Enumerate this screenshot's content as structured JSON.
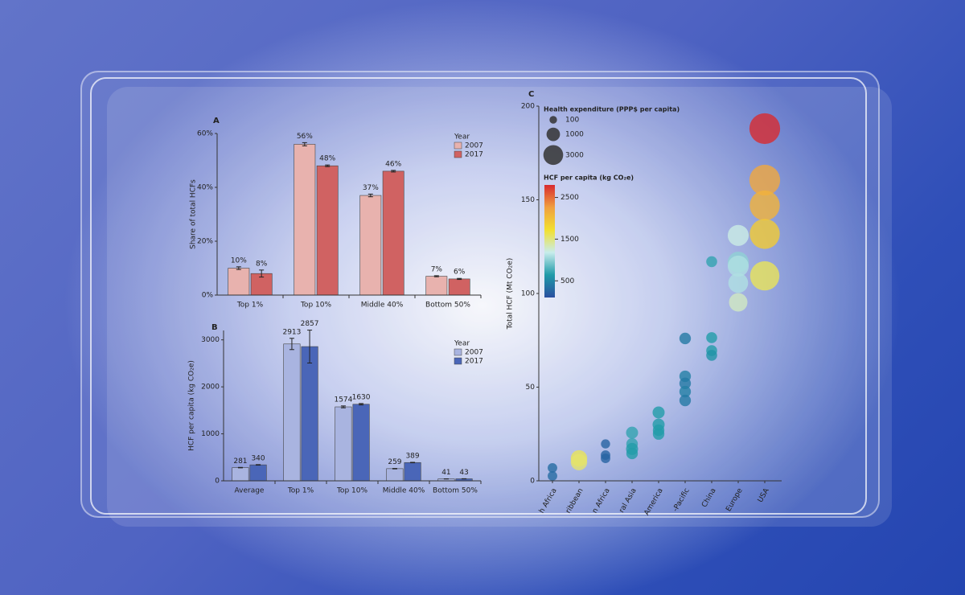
{
  "chart_data": [
    {
      "type": "bar",
      "title": "A",
      "y_label": "Share of total HCFs",
      "legend_title": "Year",
      "categories": [
        "Top 1%",
        "Top 10%",
        "Middle 40%",
        "Bottom 50%"
      ],
      "series": [
        {
          "name": "2007",
          "color": "#e8b2ae",
          "values": [
            10,
            56,
            37,
            7
          ],
          "value_labels": [
            "10%",
            "56%",
            "37%",
            "7%"
          ],
          "errors": [
            0.5,
            0.6,
            0.5,
            0.2
          ]
        },
        {
          "name": "2017",
          "color": "#d06262",
          "values": [
            8,
            48,
            46,
            6
          ],
          "value_labels": [
            "8%",
            "48%",
            "46%",
            "6%"
          ],
          "errors": [
            1.3,
            0.3,
            0.3,
            0.2
          ]
        }
      ],
      "ylim": [
        0,
        60
      ],
      "yticks": [
        {
          "value": 0,
          "label": "0%"
        },
        {
          "value": 20,
          "label": "20%"
        },
        {
          "value": 40,
          "label": "40%"
        },
        {
          "value": 60,
          "label": "60%"
        }
      ]
    },
    {
      "type": "bar",
      "title": "B",
      "y_label": "HCF per capita (kg CO₂e)",
      "legend_title": "Year",
      "categories": [
        "Average",
        "Top 1%",
        "Top 10%",
        "Middle 40%",
        "Bottom 50%"
      ],
      "series": [
        {
          "name": "2007",
          "color": "#a9b4e0",
          "values": [
            281,
            2913,
            1574,
            259,
            41
          ],
          "errors": [
            5,
            120,
            20,
            5,
            2
          ]
        },
        {
          "name": "2017",
          "color": "#4a66b8",
          "values": [
            340,
            2857,
            1630,
            389,
            43
          ],
          "errors": [
            5,
            350,
            15,
            5,
            2
          ]
        }
      ],
      "ylim": [
        0,
        3200
      ],
      "yticks": [
        0,
        1000,
        2000,
        3000
      ]
    },
    {
      "type": "scatter",
      "title": "C",
      "y_label": "Total HCF (Mt CO₂e)",
      "groups": [
        {
          "category": "h Africa",
          "values": [
            6.9,
            2.6
          ],
          "sizes": [
            300,
            300
          ],
          "color_values": [
            300,
            300
          ]
        },
        {
          "category": "ribbean",
          "values": [
            12,
            10
          ],
          "sizes": [
            1800,
            1800
          ],
          "color_values": [
            1600,
            1550
          ]
        },
        {
          "category": "n Africa",
          "values": [
            19.7,
            13.7,
            12
          ],
          "sizes": [
            250,
            300,
            300
          ],
          "color_values": [
            250,
            250,
            250
          ]
        },
        {
          "category": "ral Asia",
          "values": [
            25.7,
            19.7,
            17,
            14.6
          ],
          "sizes": [
            700,
            600,
            700,
            600
          ],
          "color_values": [
            700,
            700,
            650,
            650
          ]
        },
        {
          "category": "America",
          "values": [
            36.5,
            30,
            27,
            25
          ],
          "sizes": [
            700,
            700,
            600,
            600
          ],
          "color_values": [
            650,
            650,
            650,
            650
          ]
        },
        {
          "category": "-Pacific",
          "values": [
            76,
            55.8,
            52,
            47.6,
            42.9
          ],
          "sizes": [
            600,
            600,
            600,
            600,
            600
          ],
          "color_values": [
            400,
            450,
            400,
            450,
            400
          ]
        },
        {
          "category": "China",
          "values": [
            117,
            76.4,
            69.5,
            67
          ],
          "sizes": [
            500,
            500,
            500,
            500
          ],
          "color_values": [
            700,
            650,
            650,
            600
          ]
        },
        {
          "category": "Europe",
          "values": [
            131,
            116.7,
            114.6,
            105.6,
            95.3
          ],
          "sizes": [
            3500,
            3500,
            3500,
            3000,
            2500
          ],
          "color_values": [
            1200,
            1000,
            1100,
            1100,
            1300
          ]
        },
        {
          "category": "USA",
          "values": [
            188,
            160.5,
            147,
            131.8,
            109.4
          ],
          "sizes": [
            9000,
            9000,
            8500,
            8500,
            8000
          ],
          "color_values": [
            2800,
            2200,
            2100,
            1900,
            1600
          ]
        }
      ],
      "ylim": [
        0,
        200
      ],
      "yticks": [
        0,
        50,
        100,
        150,
        200
      ],
      "size_legend": {
        "title": "Health expenditure (PPP$ per capita)",
        "values": [
          100,
          1000,
          3000
        ]
      },
      "colorbar": {
        "title": "HCF per capita (kg CO₂e)",
        "lim": [
          100,
          2800
        ],
        "ticks": [
          500,
          1500,
          2500
        ],
        "colors": [
          "#2a4fa0",
          "#1f9aa8",
          "#c8ecec",
          "#f2e030",
          "#f0a040",
          "#d82a30"
        ]
      }
    }
  ]
}
